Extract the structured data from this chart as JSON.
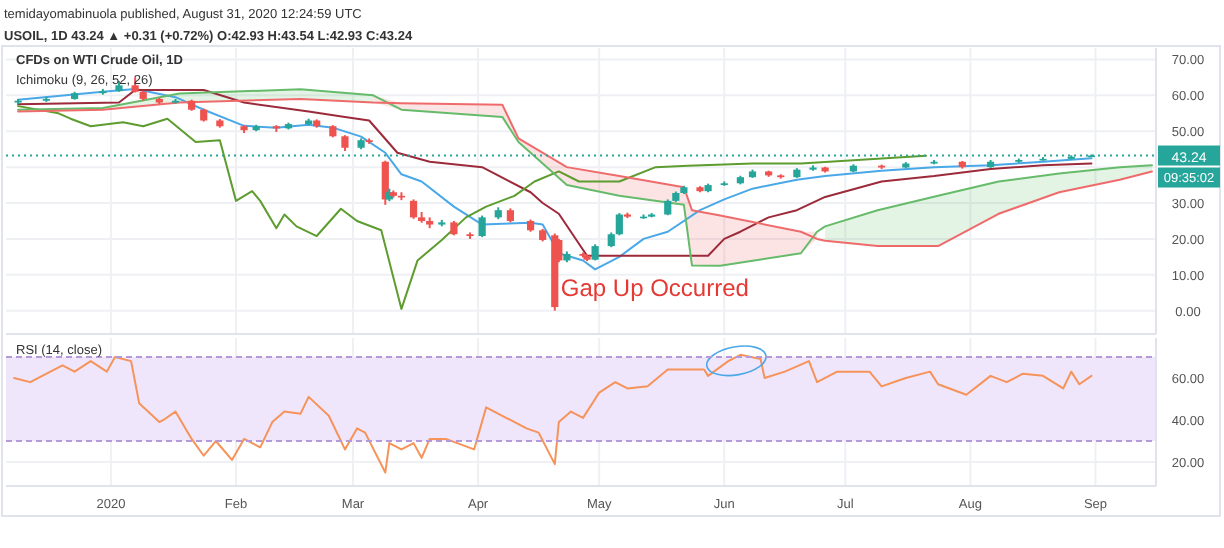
{
  "chart_data": [
    {
      "type": "candlestick",
      "title": "CFDs on WTI Crude Oil, 1D",
      "subtitle": "temidayomabinuola published, August 31, 2020 12:24:59 UTC",
      "annotations": [
        "USOIL, 1D 43.24 ▲ +0.31 (+0.72%) O:42.93 H:43.54 L:42.93 C:43.24",
        "Ichimoku (9, 26, 52, 26)",
        "09:35:02",
        {
          "text": "Gap Up Occurred",
          "x": "2020-04-21",
          "y": 4
        }
      ],
      "x": [
        "2019-12-09",
        "2019-12-16",
        "2019-12-23",
        "2019-12-30",
        "2020-01-03",
        "2020-01-07",
        "2020-01-09",
        "2020-01-13",
        "2020-01-17",
        "2020-01-21",
        "2020-01-24",
        "2020-01-28",
        "2020-02-03",
        "2020-02-06",
        "2020-02-11",
        "2020-02-14",
        "2020-02-19",
        "2020-02-21",
        "2020-02-25",
        "2020-02-28",
        "2020-03-03",
        "2020-03-05",
        "2020-03-09",
        "2020-03-10",
        "2020-03-11",
        "2020-03-13",
        "2020-03-16",
        "2020-03-18",
        "2020-03-20",
        "2020-03-23",
        "2020-03-26",
        "2020-03-30",
        "2020-04-02",
        "2020-04-06",
        "2020-04-09",
        "2020-04-14",
        "2020-04-17",
        "2020-04-20",
        "2020-04-21",
        "2020-04-23",
        "2020-04-27",
        "2020-04-28",
        "2020-04-30",
        "2020-05-04",
        "2020-05-06",
        "2020-05-08",
        "2020-05-12",
        "2020-05-14",
        "2020-05-18",
        "2020-05-20",
        "2020-05-22",
        "2020-05-26",
        "2020-05-28",
        "2020-06-01",
        "2020-06-05",
        "2020-06-08",
        "2020-06-12",
        "2020-06-15",
        "2020-06-19",
        "2020-06-23",
        "2020-06-26",
        "2020-07-03",
        "2020-07-10",
        "2020-07-16",
        "2020-07-23",
        "2020-07-30",
        "2020-08-06",
        "2020-08-13",
        "2020-08-19",
        "2020-08-26",
        "2020-08-31"
      ],
      "ohlc": [
        [
          58,
          59,
          57.5,
          58.5
        ],
        [
          58.5,
          59.6,
          58.2,
          59
        ],
        [
          59,
          61,
          58.8,
          60.6
        ],
        [
          60.6,
          61.8,
          60.2,
          61.2
        ],
        [
          61.2,
          64,
          61,
          62.8
        ],
        [
          62.8,
          65,
          60.8,
          61
        ],
        [
          61,
          61.3,
          58.5,
          59
        ],
        [
          59,
          59.4,
          57.6,
          58
        ],
        [
          58,
          59,
          57.7,
          58.5
        ],
        [
          58.5,
          58.8,
          55.7,
          56
        ],
        [
          56,
          56.3,
          52.7,
          53
        ],
        [
          53,
          53.4,
          51,
          51.4
        ],
        [
          51.4,
          51.7,
          49.5,
          50.3
        ],
        [
          50.3,
          51.8,
          50,
          51.4
        ],
        [
          51.4,
          51.7,
          49.8,
          50.8
        ],
        [
          50.8,
          52.4,
          50.5,
          52
        ],
        [
          52,
          53.5,
          51.7,
          53
        ],
        [
          53,
          53.3,
          51,
          51.4
        ],
        [
          51.4,
          51.7,
          48.3,
          48.6
        ],
        [
          48.6,
          48.9,
          44.5,
          45.4
        ],
        [
          45.4,
          48,
          45,
          47.5
        ],
        [
          47.5,
          48,
          46.5,
          47
        ],
        [
          41.5,
          41.8,
          29.5,
          31
        ],
        [
          31,
          34,
          30.5,
          33
        ],
        [
          33,
          33.5,
          31.5,
          32
        ],
        [
          32,
          33,
          30.8,
          31.7
        ],
        [
          30.6,
          31,
          25.6,
          26
        ],
        [
          26,
          27.5,
          24.5,
          25
        ],
        [
          25,
          26,
          23,
          24
        ],
        [
          24,
          25.3,
          23.5,
          24.6
        ],
        [
          24.6,
          25,
          21,
          21.3
        ],
        [
          21.3,
          21.8,
          20,
          20.8
        ],
        [
          20.8,
          26.5,
          20.5,
          26
        ],
        [
          26,
          28.8,
          25.5,
          28
        ],
        [
          28,
          28.5,
          24.6,
          25
        ],
        [
          25,
          25.4,
          22,
          22.4
        ],
        [
          22.4,
          22.8,
          19.3,
          19.7
        ],
        [
          21,
          21.5,
          0,
          1
        ],
        [
          19.7,
          20,
          13.5,
          14
        ],
        [
          14,
          16.5,
          13.5,
          15.8
        ],
        [
          15.8,
          16.2,
          14.8,
          15.3
        ],
        [
          15.3,
          15.6,
          13.8,
          14.2
        ],
        [
          14.2,
          18.5,
          14,
          18
        ],
        [
          18,
          21.8,
          17.7,
          21.3
        ],
        [
          21.3,
          27.2,
          21,
          26.8
        ],
        [
          26.8,
          27.3,
          25.8,
          26.2
        ],
        [
          26.2,
          26.8,
          25.6,
          26.2
        ],
        [
          26.2,
          27.2,
          26,
          26.8
        ],
        [
          26.8,
          31,
          26.6,
          30.6
        ],
        [
          30.6,
          33.2,
          30.3,
          32.8
        ],
        [
          32.8,
          34.8,
          32.5,
          34.4
        ],
        [
          34.4,
          34.7,
          33,
          33.3
        ],
        [
          33.3,
          35.4,
          33,
          35
        ],
        [
          35,
          36,
          34.8,
          35.5
        ],
        [
          35.5,
          37.6,
          35.2,
          37.2
        ],
        [
          37.2,
          39.3,
          37,
          38.8
        ],
        [
          38.8,
          39,
          37.3,
          37.7
        ],
        [
          37.7,
          38,
          36.8,
          37.2
        ],
        [
          37.2,
          39.7,
          37,
          39.3
        ],
        [
          39.3,
          40.5,
          39,
          39.9
        ],
        [
          39.9,
          40.1,
          38.5,
          38.8
        ],
        [
          38.8,
          40.8,
          38.6,
          40.4
        ],
        [
          40.4,
          40.7,
          39.5,
          39.9
        ],
        [
          39.9,
          41.4,
          39.7,
          41
        ],
        [
          41,
          42,
          40.8,
          41.5
        ],
        [
          41.5,
          41.7,
          39.6,
          40
        ],
        [
          40,
          42,
          39.8,
          41.5
        ],
        [
          41.5,
          42.4,
          41.2,
          42
        ],
        [
          42,
          42.8,
          41.8,
          42.3
        ],
        [
          42.3,
          43.3,
          42.1,
          42.9
        ],
        [
          42.93,
          43.54,
          42.93,
          43.24
        ]
      ],
      "colors": [
        "#26a69a",
        "#26a69a",
        "#26a69a",
        "#26a69a",
        "#26a69a",
        "#ef5350",
        "#ef5350",
        "#ef5350",
        "#26a69a",
        "#ef5350",
        "#ef5350",
        "#ef5350",
        "#ef5350",
        "#26a69a",
        "#ef5350",
        "#26a69a",
        "#26a69a",
        "#ef5350",
        "#ef5350",
        "#ef5350",
        "#26a69a",
        "#ef5350",
        "#ef5350",
        "#26a69a",
        "#ef5350",
        "#ef5350",
        "#ef5350",
        "#ef5350",
        "#ef5350",
        "#26a69a",
        "#ef5350",
        "#ef5350",
        "#26a69a",
        "#26a69a",
        "#ef5350",
        "#ef5350",
        "#ef5350",
        "#ef5350",
        "#ef5350",
        "#26a69a",
        "#ef5350",
        "#ef5350",
        "#26a69a",
        "#26a69a",
        "#26a69a",
        "#ef5350",
        "#26a69a",
        "#26a69a",
        "#26a69a",
        "#26a69a",
        "#26a69a",
        "#ef5350",
        "#26a69a",
        "#26a69a",
        "#26a69a",
        "#26a69a",
        "#ef5350",
        "#ef5350",
        "#26a69a",
        "#26a69a",
        "#ef5350",
        "#26a69a",
        "#ef5350",
        "#26a69a",
        "#26a69a",
        "#ef5350",
        "#26a69a",
        "#26a69a",
        "#26a69a",
        "#26a69a",
        "#26a69a"
      ],
      "series": [
        {
          "type": "line",
          "color": "#4aa8e8",
          "x": [
            "2019-12-09",
            "2019-12-30",
            "2020-01-07",
            "2020-01-17",
            "2020-01-24",
            "2020-02-03",
            "2020-02-11",
            "2020-02-19",
            "2020-02-25",
            "2020-03-03",
            "2020-03-09",
            "2020-03-13",
            "2020-03-18",
            "2020-03-26",
            "2020-04-02",
            "2020-04-14",
            "2020-04-17",
            "2020-04-21",
            "2020-04-27",
            "2020-04-30",
            "2020-05-06",
            "2020-05-12",
            "2020-05-18",
            "2020-05-26",
            "2020-06-01",
            "2020-06-08",
            "2020-06-19",
            "2020-06-26",
            "2020-07-10",
            "2020-07-23",
            "2020-08-06",
            "2020-08-19",
            "2020-08-31"
          ],
          "values": [
            58.8,
            61,
            61.8,
            59.5,
            56,
            51.5,
            51,
            51.8,
            51,
            48.5,
            44,
            38,
            36,
            29,
            24,
            24.5,
            24,
            16,
            14,
            11.5,
            15,
            20,
            22,
            28,
            31,
            34,
            36.5,
            37.5,
            39,
            40,
            40.5,
            41.5,
            42.5
          ]
        },
        {
          "type": "line",
          "color": "#9c2a3a",
          "x": [
            "2019-12-09",
            "2020-01-03",
            "2020-01-07",
            "2020-01-24",
            "2020-02-03",
            "2020-02-19",
            "2020-02-28",
            "2020-03-05",
            "2020-03-12",
            "2020-03-20",
            "2020-04-02",
            "2020-04-14",
            "2020-04-17",
            "2020-04-21",
            "2020-04-28",
            "2020-05-18",
            "2020-05-28",
            "2020-06-01",
            "2020-06-05",
            "2020-06-12",
            "2020-06-19",
            "2020-06-26",
            "2020-07-10",
            "2020-07-23",
            "2020-08-06",
            "2020-08-19",
            "2020-08-31"
          ],
          "values": [
            57.5,
            58,
            61.5,
            61.5,
            58,
            55.5,
            54,
            53,
            44,
            41.5,
            40,
            33,
            30,
            27,
            15.3,
            15.3,
            15.3,
            20,
            22,
            26,
            28,
            31.7,
            36,
            37.5,
            39.5,
            40.5,
            41
          ]
        },
        {
          "type": "line",
          "color": "#5d9c2e",
          "x": [
            "2019-12-09",
            "2019-12-19",
            "2019-12-22",
            "2019-12-27",
            "2020-01-04",
            "2020-01-09",
            "2020-01-15",
            "2020-01-22",
            "2020-01-28",
            "2020-02-01",
            "2020-02-05",
            "2020-02-07",
            "2020-02-11",
            "2020-02-13",
            "2020-02-16",
            "2020-02-21",
            "2020-02-27",
            "2020-03-02",
            "2020-03-08",
            "2020-03-13",
            "2020-03-17",
            "2020-03-23",
            "2020-03-29",
            "2020-04-03",
            "2020-04-10",
            "2020-04-15",
            "2020-04-21",
            "2020-04-26",
            "2020-05-06",
            "2020-05-15",
            "2020-05-23",
            "2020-06-08",
            "2020-06-20",
            "2020-07-21"
          ],
          "values": [
            57,
            55,
            53.5,
            51.4,
            52.5,
            51.4,
            53.5,
            47,
            47.5,
            30.6,
            33.3,
            30.6,
            23,
            26.8,
            23.5,
            20.8,
            28.4,
            25,
            22.4,
            0.5,
            14,
            19.7,
            26,
            29,
            32,
            36,
            38.8,
            36,
            36,
            40,
            40.4,
            41,
            41,
            43.2
          ]
        },
        {
          "type": "line",
          "color": "#66bb6a",
          "lower": [
            55.5,
            56,
            58,
            59,
            58,
            null,
            null,
            null,
            null,
            null,
            null,
            null,
            null,
            null,
            null,
            19.5,
            18,
            18,
            27,
            33,
            36.5,
            38.8
          ],
          "upper": [
            56,
            56.5,
            60.5,
            61.7,
            60,
            null,
            null,
            null,
            null,
            null,
            null,
            null,
            null,
            null,
            null,
            23.5,
            28,
            32,
            36,
            38.2,
            40,
            40.5
          ],
          "x": [
            "2019-12-09",
            "2019-12-30",
            "2020-01-18",
            "2020-02-17",
            "2020-03-06",
            "2020-03-13",
            "2020-04-07",
            "2020-04-11",
            "2020-04-23",
            "2020-05-06",
            "2020-05-22",
            "2020-05-24",
            "2020-05-31",
            "2020-06-20",
            "2020-06-24",
            "2020-06-26",
            "2020-07-09",
            "2020-07-24",
            "2020-08-08",
            "2020-08-23",
            "2020-09-07",
            "2020-09-15"
          ],
          "values": [
            56,
            56.5,
            60.5,
            61.7,
            60,
            56,
            54,
            47,
            35,
            32,
            29.5,
            12.6,
            12.5,
            16,
            22,
            23.5,
            28,
            32,
            36,
            38.2,
            40,
            40.5
          ]
        },
        {
          "type": "line",
          "color": "#ef6b6b",
          "lower": [
            null,
            null,
            null,
            null,
            58,
            56,
            54,
            47,
            35,
            32,
            29.5,
            12.6,
            12.5,
            16,
            20,
            null,
            null,
            null,
            null,
            null,
            null,
            null
          ],
          "upper": [
            null,
            null,
            null,
            null,
            60,
            57.8,
            57.4,
            48,
            40,
            37.5,
            34.4,
            28,
            26.5,
            22,
            22,
            null,
            null,
            null,
            null,
            null,
            null,
            null
          ],
          "x": [
            "2019-12-09",
            "2019-12-30",
            "2020-01-18",
            "2020-02-17",
            "2020-03-06",
            "2020-03-13",
            "2020-04-07",
            "2020-04-11",
            "2020-04-23",
            "2020-05-06",
            "2020-05-22",
            "2020-05-24",
            "2020-05-31",
            "2020-06-20",
            "2020-06-24",
            "2020-06-26",
            "2020-07-09",
            "2020-07-24",
            "2020-08-08",
            "2020-08-23",
            "2020-09-07",
            "2020-09-15"
          ],
          "values": [
            55.5,
            56,
            58,
            59,
            58,
            57.8,
            57.4,
            48,
            40,
            37.5,
            34.4,
            28,
            26.5,
            22,
            20,
            19.5,
            18,
            18,
            27,
            33,
            36.5,
            38.8
          ]
        }
      ],
      "xlim": [
        "2019-12-06",
        "2020-09-16"
      ],
      "ylim": [
        -6.5,
        73.2
      ],
      "yticks": [
        {
          "value": 0,
          "label": "0.00"
        },
        {
          "value": 10,
          "label": "10.00"
        },
        {
          "value": 20,
          "label": "20.00"
        },
        {
          "value": 30,
          "label": "30.00"
        },
        {
          "value": 40,
          "label": null
        },
        {
          "value": 50,
          "label": "50.00"
        },
        {
          "value": 60,
          "label": "60.00"
        },
        {
          "value": 70,
          "label": "70.00"
        }
      ],
      "xticks": [
        {
          "value": "2020-01-01",
          "label": null
        },
        {
          "value": "2020-02-01",
          "label": null
        },
        {
          "value": "2020-03-01",
          "label": null
        },
        {
          "value": "2020-04-01",
          "label": null
        },
        {
          "value": "2020-05-01",
          "label": null
        },
        {
          "value": "2020-06-01",
          "label": null
        },
        {
          "value": "2020-07-01",
          "label": null
        },
        {
          "value": "2020-08-01",
          "label": null
        },
        {
          "value": "2020-09-01",
          "label": null
        }
      ],
      "tick_labels": "y",
      "grid": true,
      "ref_lines": [
        {
          "axis": "y",
          "value": 43.24,
          "label": "43.24",
          "color": "#26a69a",
          "line_style": "dotted"
        }
      ]
    },
    {
      "type": "line",
      "title": "RSI (14, close)",
      "color": "#f5935a",
      "x": [
        "2019-12-08",
        "2019-12-12",
        "2019-12-20",
        "2019-12-23",
        "2019-12-27",
        "2019-12-31",
        "2020-01-02",
        "2020-01-06",
        "2020-01-08",
        "2020-01-13",
        "2020-01-14",
        "2020-01-17",
        "2020-01-21",
        "2020-01-24",
        "2020-01-27",
        "2020-01-31",
        "2020-02-03",
        "2020-02-07",
        "2020-02-10",
        "2020-02-13",
        "2020-02-17",
        "2020-02-19",
        "2020-02-24",
        "2020-02-28",
        "2020-03-02",
        "2020-03-04",
        "2020-03-09",
        "2020-03-10",
        "2020-03-13",
        "2020-03-16",
        "2020-03-18",
        "2020-03-20",
        "2020-03-24",
        "2020-03-31",
        "2020-04-03",
        "2020-04-07",
        "2020-04-13",
        "2020-04-16",
        "2020-04-20",
        "2020-04-21",
        "2020-04-24",
        "2020-04-27",
        "2020-04-30",
        "2020-05-01",
        "2020-05-05",
        "2020-05-08",
        "2020-05-13",
        "2020-05-18",
        "2020-05-27",
        "2020-05-28",
        "2020-06-02",
        "2020-06-05",
        "2020-06-10",
        "2020-06-11",
        "2020-06-16",
        "2020-06-22",
        "2020-06-24",
        "2020-06-29",
        "2020-07-07",
        "2020-07-10",
        "2020-07-16",
        "2020-07-22",
        "2020-07-24",
        "2020-07-31",
        "2020-08-06",
        "2020-08-10",
        "2020-08-14",
        "2020-08-19",
        "2020-08-24",
        "2020-08-26",
        "2020-08-28",
        "2020-08-31"
      ],
      "values": [
        60,
        58,
        66,
        63,
        68,
        63,
        70,
        68,
        48,
        39,
        40,
        44,
        31,
        23,
        30,
        21,
        31,
        27,
        39,
        44,
        43,
        51,
        42,
        26,
        36,
        34,
        15,
        29,
        26,
        29,
        22,
        31,
        31,
        26,
        46,
        42,
        36,
        34,
        19,
        39,
        44,
        41,
        50,
        53,
        58,
        55,
        56,
        64,
        64,
        61,
        68,
        71,
        69,
        60,
        63,
        68,
        58,
        63,
        63,
        56,
        60,
        63,
        57,
        52,
        61,
        58,
        62,
        61,
        55,
        63,
        57,
        61
      ],
      "bands": [
        {
          "axis": "y",
          "from": 30,
          "to": 70,
          "color": "#f0e6fb"
        }
      ],
      "ref_lines": [
        {
          "axis": "y",
          "value": 70,
          "color": "#b49ad8",
          "line_style": "dashed"
        },
        {
          "axis": "y",
          "value": 30,
          "color": "#b49ad8",
          "line_style": "dashed"
        }
      ],
      "xlim": [
        "2019-12-06",
        "2020-09-16"
      ],
      "ylim": [
        8.6,
        79
      ],
      "yticks": [
        {
          "value": 20,
          "label": "20.00"
        },
        {
          "value": 40,
          "label": "40.00"
        },
        {
          "value": 60,
          "label": "60.00"
        }
      ],
      "xticks": [
        {
          "value": "2020-01-01",
          "label": "2020"
        },
        {
          "value": "2020-02-01",
          "label": "Feb"
        },
        {
          "value": "2020-03-01",
          "label": "Mar"
        },
        {
          "value": "2020-04-01",
          "label": "Apr"
        },
        {
          "value": "2020-05-01",
          "label": "May"
        },
        {
          "value": "2020-06-01",
          "label": "Jun"
        },
        {
          "value": "2020-07-01",
          "label": "Jul"
        },
        {
          "value": "2020-08-01",
          "label": "Aug"
        },
        {
          "value": "2020-09-01",
          "label": "Sep"
        }
      ],
      "grid": true
    }
  ]
}
